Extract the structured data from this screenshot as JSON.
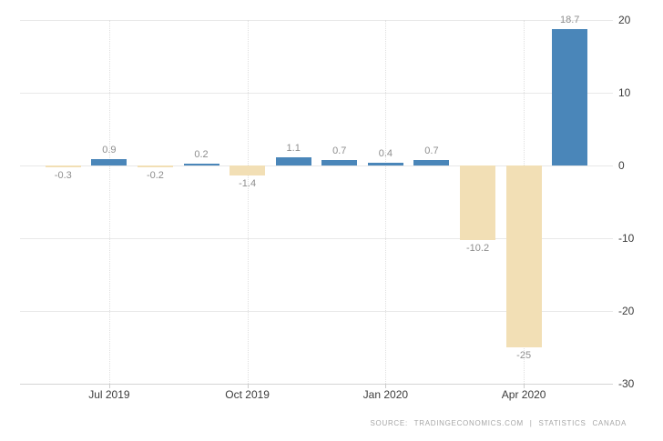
{
  "chart_data": {
    "type": "bar",
    "title": "",
    "xlabel": "",
    "ylabel": "",
    "values": [
      -0.3,
      0.9,
      -0.2,
      0.2,
      -1.4,
      1.1,
      0.7,
      0.4,
      0.7,
      -10.2,
      -25,
      18.7
    ],
    "data_labels": [
      "-0.3",
      "0.9",
      "-0.2",
      "0.2",
      "-1.4",
      "1.1",
      "0.7",
      "0.4",
      "0.7",
      "-10.2",
      "-25",
      "18.7"
    ],
    "x_tick_labels": [
      "Jul 2019",
      "Oct 2019",
      "Jan 2020",
      "Apr 2020"
    ],
    "x_tick_bar_indices": [
      1,
      4,
      7,
      10
    ],
    "y_ticks": [
      20,
      10,
      0,
      -10,
      -20,
      -30
    ],
    "ylim": [
      -30,
      20
    ],
    "grid": true,
    "legend": "none",
    "y_axis_position": "right",
    "positive_color": "#4a86b9",
    "negative_color": "#f2dfb5",
    "value_label_color": "#8e8e8e",
    "axis_label_color": "#3c3c3c",
    "gridline_color": "#e8e8e8"
  },
  "footer": {
    "source": "SOURCE: TRADINGECONOMICS.COM | STATISTICS CANADA"
  }
}
